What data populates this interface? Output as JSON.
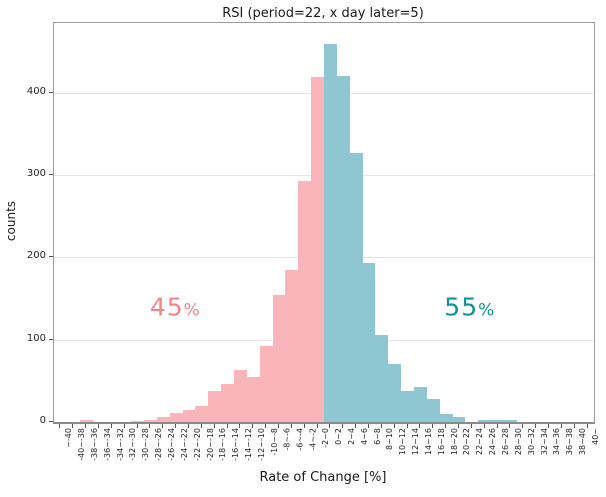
{
  "title": "RSI (period=22, x day later=5)",
  "chart_data": {
    "type": "bar",
    "title": "RSI (period=22, x day later=5)",
    "xlabel": "Rate of Change [%]",
    "ylabel": "counts",
    "ylim": [
      0,
      485
    ],
    "yticks": [
      0,
      100,
      200,
      300,
      400
    ],
    "grid": true,
    "legend": "none",
    "categories": [
      "~-40",
      "-40~-38",
      "-38~-36",
      "-36~-34",
      "-34~-32",
      "-32~-30",
      "-30~-28",
      "-28~-26",
      "-26~-24",
      "-24~-22",
      "-22~-20",
      "-20~-18",
      "-18~-16",
      "-16~-14",
      "-14~-12",
      "-12~-10",
      "-10~-8",
      "-8~-6",
      "-6~-4",
      "-4~-2",
      "-2~0",
      "0~2",
      "2~4",
      "4~6",
      "6~8",
      "8~10",
      "10~12",
      "12~14",
      "14~16",
      "16~18",
      "18~20",
      "20~22",
      "22~24",
      "24~26",
      "26~28",
      "28~30",
      "30~32",
      "32~34",
      "34~36",
      "36~38",
      "38~40",
      "40~"
    ],
    "values": [
      0,
      0,
      2,
      0,
      0,
      0,
      1,
      3,
      6,
      11,
      14,
      19,
      38,
      46,
      63,
      55,
      93,
      155,
      185,
      293,
      419,
      460,
      421,
      327,
      193,
      106,
      70,
      38,
      42,
      28,
      10,
      6,
      0,
      3,
      3,
      3,
      0,
      0,
      0,
      0,
      0,
      0
    ],
    "split_index": 21,
    "colors": {
      "negative_bar": "#fab5bb",
      "positive_bar": "#8ec6d2",
      "negative_text": "#f4838c",
      "positive_text": "#0f929c",
      "gridline": "#e5e5e5"
    },
    "annotations": [
      {
        "text": "45",
        "suffix": "%",
        "color": "#f4838c",
        "x_bin": 9.4,
        "y_count": 140
      },
      {
        "text": "55",
        "suffix": "%",
        "color": "#0f929c",
        "x_bin": 32.3,
        "y_count": 140
      }
    ]
  }
}
